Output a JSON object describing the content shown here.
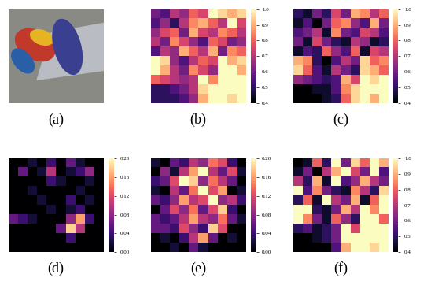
{
  "chart_data": [
    {
      "type": "image",
      "label": "(a)"
    },
    {
      "type": "heatmap",
      "label": "(b)",
      "tick_labels": false,
      "cells": [
        [
          0.6,
          0.55,
          0.7,
          0.65,
          0.8,
          0.75,
          1.0,
          0.95,
          0.9,
          0.95
        ],
        [
          0.55,
          0.65,
          0.5,
          0.7,
          0.85,
          0.9,
          0.8,
          0.7,
          1.0,
          0.75
        ],
        [
          0.65,
          0.75,
          0.8,
          0.6,
          0.9,
          0.75,
          0.7,
          0.85,
          0.8,
          0.7
        ],
        [
          0.7,
          0.6,
          0.85,
          0.75,
          0.65,
          0.55,
          0.8,
          0.75,
          0.6,
          0.65
        ],
        [
          0.55,
          0.7,
          0.65,
          0.9,
          0.8,
          0.7,
          0.9,
          0.6,
          0.85,
          0.8
        ],
        [
          1.0,
          0.95,
          0.65,
          0.55,
          0.7,
          0.8,
          0.75,
          1.0,
          0.9,
          0.95
        ],
        [
          1.0,
          0.9,
          0.7,
          0.6,
          0.85,
          0.75,
          0.65,
          1.0,
          1.0,
          0.9
        ],
        [
          0.8,
          0.75,
          0.7,
          0.65,
          0.7,
          1.0,
          0.85,
          1.0,
          1.0,
          1.0
        ],
        [
          0.5,
          0.5,
          0.55,
          0.6,
          0.7,
          0.95,
          1.0,
          1.0,
          1.0,
          1.0
        ],
        [
          0.5,
          0.5,
          0.5,
          0.55,
          0.65,
          0.9,
          1.0,
          1.0,
          0.95,
          1.0
        ]
      ],
      "colorbar": {
        "range": [
          0.4,
          1.0
        ],
        "ticks": [
          0.4,
          0.5,
          0.6,
          0.7,
          0.8,
          0.9,
          1.0
        ]
      }
    },
    {
      "type": "heatmap",
      "label": "(c)",
      "tick_labels": false,
      "cells": [
        [
          0.5,
          0.45,
          0.6,
          0.5,
          0.75,
          0.6,
          0.9,
          0.85,
          0.7,
          0.8
        ],
        [
          0.45,
          0.55,
          0.4,
          0.6,
          0.8,
          0.85,
          0.65,
          0.55,
          0.9,
          0.6
        ],
        [
          0.55,
          0.6,
          0.7,
          0.45,
          0.85,
          0.6,
          0.55,
          0.75,
          0.7,
          0.55
        ],
        [
          0.6,
          0.45,
          0.75,
          0.6,
          0.5,
          0.45,
          0.7,
          0.65,
          0.45,
          0.5
        ],
        [
          0.45,
          0.55,
          0.5,
          0.8,
          0.65,
          0.55,
          0.8,
          0.45,
          0.75,
          0.7
        ],
        [
          0.9,
          0.85,
          0.5,
          0.4,
          0.55,
          0.7,
          0.6,
          0.95,
          0.8,
          0.85
        ],
        [
          0.95,
          0.8,
          0.55,
          0.45,
          0.7,
          0.6,
          0.5,
          0.95,
          0.9,
          0.8
        ],
        [
          0.65,
          0.6,
          0.55,
          0.5,
          0.55,
          0.9,
          0.75,
          1.0,
          0.95,
          1.0
        ],
        [
          0.4,
          0.4,
          0.45,
          0.45,
          0.55,
          0.85,
          0.95,
          1.0,
          1.0,
          1.0
        ],
        [
          0.4,
          0.4,
          0.4,
          0.45,
          0.5,
          0.8,
          0.95,
          1.0,
          0.9,
          1.0
        ]
      ],
      "colorbar": {
        "range": [
          0.4,
          1.0
        ],
        "ticks": [
          0.4,
          0.5,
          0.6,
          0.7,
          0.8,
          0.9,
          1.0
        ]
      }
    },
    {
      "type": "heatmap",
      "label": "(d)",
      "tick_labels": false,
      "cells": [
        [
          0,
          0,
          0.02,
          0,
          0.04,
          0,
          0.06,
          0.02,
          0,
          0
        ],
        [
          0,
          0.06,
          0,
          0.02,
          0.1,
          0,
          0.02,
          0.04,
          0.08,
          0
        ],
        [
          0,
          0,
          0,
          0,
          0.04,
          0.02,
          0,
          0,
          0.02,
          0
        ],
        [
          0,
          0,
          0.02,
          0,
          0,
          0,
          0,
          0.02,
          0,
          0
        ],
        [
          0,
          0,
          0,
          0.02,
          0,
          0,
          0.04,
          0,
          0.02,
          0
        ],
        [
          0,
          0,
          0,
          0,
          0.02,
          0,
          0.02,
          0.04,
          0,
          0
        ],
        [
          0.06,
          0.04,
          0.02,
          0,
          0,
          0,
          0.08,
          0.16,
          0.04,
          0
        ],
        [
          0,
          0,
          0,
          0,
          0,
          0.06,
          0.18,
          0.1,
          0,
          0
        ],
        [
          0,
          0,
          0,
          0,
          0,
          0,
          0.04,
          0,
          0,
          0
        ],
        [
          0,
          0,
          0,
          0,
          0,
          0,
          0,
          0,
          0,
          0
        ]
      ],
      "colorbar": {
        "range": [
          0.0,
          0.2
        ],
        "ticks": [
          {
            "value": 0.0,
            "label": "0.00"
          },
          {
            "value": 0.04,
            "label": "0.04"
          },
          {
            "value": 0.08,
            "label": "0.08"
          },
          {
            "value": 0.12,
            "label": "0.12"
          },
          {
            "value": 0.16,
            "label": "0.16"
          },
          {
            "value": 0.2,
            "label": "0.20"
          }
        ]
      }
    },
    {
      "type": "heatmap",
      "label": "(e)",
      "tick_labels": false,
      "cells": [
        [
          0.02,
          0.0,
          0.06,
          0.04,
          0.1,
          0.08,
          0.14,
          0.12,
          0.04,
          0.0
        ],
        [
          0.0,
          0.08,
          0.02,
          0.1,
          0.16,
          0.2,
          0.1,
          0.06,
          0.12,
          0.02
        ],
        [
          0.04,
          0.06,
          0.12,
          0.2,
          0.18,
          0.08,
          0.14,
          0.1,
          0.06,
          0.0
        ],
        [
          0.02,
          0.0,
          0.1,
          0.06,
          0.14,
          0.2,
          0.12,
          0.16,
          0.0,
          0.02
        ],
        [
          0.06,
          0.04,
          0.08,
          0.16,
          0.1,
          0.12,
          0.2,
          0.08,
          0.1,
          0.04
        ],
        [
          0.0,
          0.06,
          0.12,
          0.08,
          0.14,
          0.06,
          0.12,
          0.18,
          0.04,
          0.0
        ],
        [
          0.06,
          0.04,
          0.06,
          0.1,
          0.16,
          0.1,
          0.08,
          0.14,
          0.06,
          0.02
        ],
        [
          0.06,
          0.06,
          0.04,
          0.12,
          0.08,
          0.04,
          0.18,
          0.12,
          0.0,
          0.0
        ],
        [
          0.0,
          0.02,
          0.0,
          0.04,
          0.1,
          0.16,
          0.06,
          0.0,
          0.02,
          0.0
        ],
        [
          0.0,
          0.0,
          0.02,
          0.0,
          0.06,
          0.02,
          0.0,
          0.0,
          0.0,
          0.0
        ]
      ],
      "colorbar": {
        "range": [
          0.0,
          0.2
        ],
        "ticks": [
          {
            "value": 0.0,
            "label": "0.00"
          },
          {
            "value": 0.04,
            "label": "0.04"
          },
          {
            "value": 0.08,
            "label": "0.08"
          },
          {
            "value": 0.12,
            "label": "0.12"
          },
          {
            "value": 0.16,
            "label": "0.16"
          },
          {
            "value": 0.2,
            "label": "0.20"
          }
        ]
      }
    },
    {
      "type": "heatmap",
      "label": "(f)",
      "tick_labels": false,
      "cells": [
        [
          0.4,
          0.45,
          0.8,
          0.5,
          1.0,
          0.6,
          0.95,
          0.8,
          1.0,
          0.9
        ],
        [
          0.45,
          0.6,
          0.4,
          0.7,
          0.9,
          1.0,
          0.75,
          0.6,
          1.0,
          0.55
        ],
        [
          0.7,
          0.5,
          0.9,
          0.45,
          1.0,
          0.55,
          0.65,
          0.9,
          0.7,
          0.6
        ],
        [
          1.0,
          0.55,
          0.85,
          0.6,
          0.5,
          0.45,
          0.85,
          0.7,
          0.5,
          0.95
        ],
        [
          0.5,
          0.8,
          0.45,
          1.0,
          0.7,
          0.6,
          0.9,
          0.45,
          0.8,
          1.0
        ],
        [
          1.0,
          1.0,
          0.5,
          0.45,
          0.6,
          0.9,
          0.7,
          1.0,
          0.85,
          1.0
        ],
        [
          1.0,
          0.85,
          0.6,
          0.45,
          0.8,
          0.65,
          0.5,
          1.0,
          1.0,
          0.8
        ],
        [
          0.5,
          0.55,
          0.45,
          0.5,
          0.6,
          1.0,
          0.75,
          1.0,
          1.0,
          1.0
        ],
        [
          0.4,
          0.4,
          0.45,
          0.5,
          0.6,
          1.0,
          1.0,
          1.0,
          1.0,
          1.0
        ],
        [
          0.4,
          0.4,
          0.4,
          0.4,
          0.55,
          0.9,
          1.0,
          1.0,
          0.95,
          1.0
        ]
      ],
      "colorbar": {
        "range": [
          0.4,
          1.0
        ],
        "ticks": [
          0.4,
          0.5,
          0.6,
          0.7,
          0.8,
          0.9,
          1.0
        ]
      }
    }
  ]
}
